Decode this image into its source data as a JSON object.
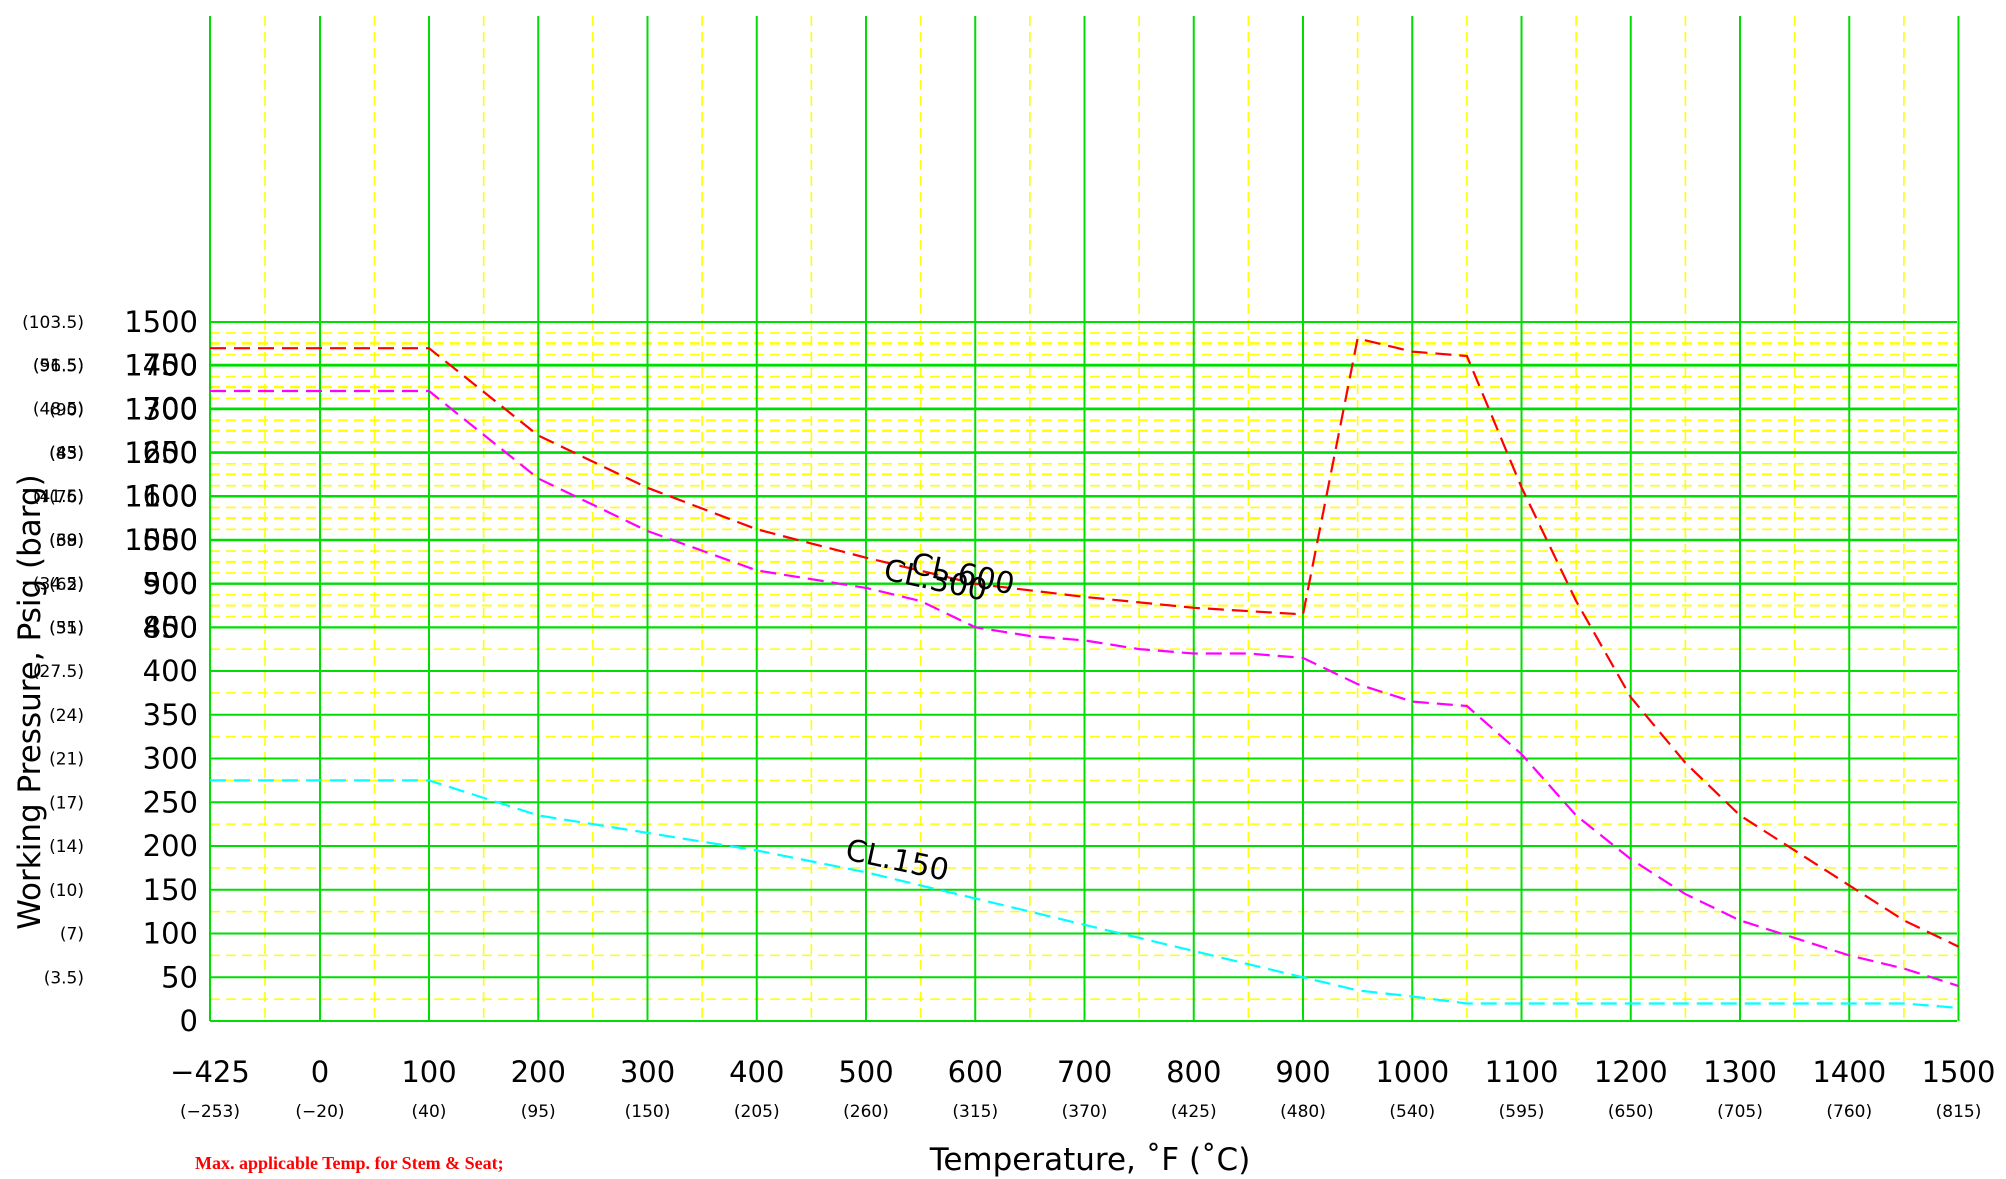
{
  "chart_data": {
    "type": "line",
    "xlabel": "Temperature, ˚F (˚C)",
    "ylabel": "Working Pressure, Psig (barg)",
    "xlim": [
      -425,
      1500
    ],
    "ylim": [
      0,
      1500
    ],
    "grid": true,
    "x_ticks": [
      {
        "label": "−425",
        "sub": "(−253)"
      },
      {
        "label": "0",
        "sub": "(−20)"
      },
      {
        "label": "100",
        "sub": "(40)"
      },
      {
        "label": "200",
        "sub": "(95)"
      },
      {
        "label": "300",
        "sub": "(150)"
      },
      {
        "label": "400",
        "sub": "(205)"
      },
      {
        "label": "500",
        "sub": "(260)"
      },
      {
        "label": "600",
        "sub": "(315)"
      },
      {
        "label": "700",
        "sub": "(370)"
      },
      {
        "label": "800",
        "sub": "(425)"
      },
      {
        "label": "900",
        "sub": "(480)"
      },
      {
        "label": "1000",
        "sub": "(540)"
      },
      {
        "label": "1100",
        "sub": "(595)"
      },
      {
        "label": "1200",
        "sub": "(650)"
      },
      {
        "label": "1300",
        "sub": "(705)"
      },
      {
        "label": "1400",
        "sub": "(760)"
      },
      {
        "label": "1500",
        "sub": "(815)"
      }
    ],
    "y_ticks": [
      {
        "value": 0,
        "label": "0",
        "sub": ""
      },
      {
        "value": 50,
        "label": "50",
        "sub": "(3.5)"
      },
      {
        "value": 100,
        "label": "100",
        "sub": "(7)"
      },
      {
        "value": 150,
        "label": "150",
        "sub": "(10)"
      },
      {
        "value": 200,
        "label": "200",
        "sub": "(14)"
      },
      {
        "value": 250,
        "label": "250",
        "sub": "(17)"
      },
      {
        "value": 300,
        "label": "300",
        "sub": "(21)"
      },
      {
        "value": 350,
        "label": "350",
        "sub": "(24)"
      },
      {
        "value": 400,
        "label": "400",
        "sub": "(27.5)"
      },
      {
        "value": 450,
        "label": "450",
        "sub": "(31)"
      },
      {
        "value": 500,
        "label": "500",
        "sub": "(34.5)"
      },
      {
        "value": 550,
        "label": "550",
        "sub": "(38)"
      },
      {
        "value": 600,
        "label": "600",
        "sub": "(41.5)"
      },
      {
        "value": 650,
        "label": "650",
        "sub": "(45)"
      },
      {
        "value": 700,
        "label": "700",
        "sub": "(48.5)"
      },
      {
        "value": 750,
        "label": "750",
        "sub": "(51.5)"
      },
      {
        "value": 800,
        "label": "800",
        "sub": "(55)"
      },
      {
        "value": 900,
        "label": "900",
        "sub": "(62)"
      },
      {
        "value": 1000,
        "label": "1000",
        "sub": "(69)"
      },
      {
        "value": 1100,
        "label": "1100",
        "sub": "(76)"
      },
      {
        "value": 1200,
        "label": "1200",
        "sub": "(83)"
      },
      {
        "value": 1300,
        "label": "1300",
        "sub": "(90)"
      },
      {
        "value": 1400,
        "label": "1400",
        "sub": "(96.5)"
      },
      {
        "value": 1500,
        "label": "1500",
        "sub": "(103.5)"
      }
    ],
    "series": [
      {
        "name": "CL.600",
        "color": "#ff0000",
        "points": [
          [
            -425,
            1440
          ],
          [
            -100,
            1440
          ],
          [
            100,
            1440
          ],
          [
            200,
            1240
          ],
          [
            300,
            1120
          ],
          [
            400,
            1025
          ],
          [
            500,
            960
          ],
          [
            600,
            900
          ],
          [
            700,
            870
          ],
          [
            800,
            845
          ],
          [
            900,
            830
          ],
          [
            950,
            780
          ],
          [
            1000,
            765
          ],
          [
            1050,
            760
          ],
          [
            1100,
            610
          ],
          [
            1150,
            480
          ],
          [
            1200,
            370
          ],
          [
            1250,
            295
          ],
          [
            1300,
            235
          ],
          [
            1400,
            155
          ],
          [
            1450,
            115
          ],
          [
            1500,
            85
          ]
        ]
      },
      {
        "name": "CL.300",
        "color": "#ff00ff",
        "points": [
          [
            -425,
            720
          ],
          [
            -100,
            720
          ],
          [
            100,
            720
          ],
          [
            200,
            620
          ],
          [
            300,
            560
          ],
          [
            400,
            515
          ],
          [
            500,
            495
          ],
          [
            550,
            480
          ],
          [
            600,
            450
          ],
          [
            650,
            440
          ],
          [
            700,
            435
          ],
          [
            750,
            425
          ],
          [
            800,
            420
          ],
          [
            850,
            420
          ],
          [
            900,
            415
          ],
          [
            950,
            385
          ],
          [
            1000,
            365
          ],
          [
            1050,
            360
          ],
          [
            1100,
            305
          ],
          [
            1150,
            235
          ],
          [
            1200,
            185
          ],
          [
            1250,
            145
          ],
          [
            1300,
            115
          ],
          [
            1350,
            95
          ],
          [
            1400,
            75
          ],
          [
            1450,
            60
          ],
          [
            1500,
            40
          ]
        ]
      },
      {
        "name": "CL.150",
        "color": "#00ffff",
        "points": [
          [
            -425,
            275
          ],
          [
            -100,
            275
          ],
          [
            100,
            275
          ],
          [
            200,
            235
          ],
          [
            300,
            215
          ],
          [
            400,
            195
          ],
          [
            500,
            170
          ],
          [
            600,
            140
          ],
          [
            700,
            110
          ],
          [
            800,
            80
          ],
          [
            900,
            50
          ],
          [
            950,
            35
          ],
          [
            1000,
            28
          ],
          [
            1050,
            20
          ],
          [
            1100,
            20
          ],
          [
            1200,
            20
          ],
          [
            1300,
            20
          ],
          [
            1400,
            20
          ],
          [
            1450,
            20
          ],
          [
            1500,
            15
          ]
        ]
      }
    ],
    "annotations": [
      {
        "text": "CL.600",
        "at": [
          540,
          925
        ]
      },
      {
        "text": "CL.300",
        "at": [
          515,
          505
        ]
      },
      {
        "text": "CL.150",
        "at": [
          480,
          185
        ]
      }
    ],
    "footnote": "Max. applicable Temp. for Stem & Seat;"
  },
  "colors": {
    "major_grid": "#00dd00",
    "minor_grid": "#ffff00",
    "cl600": "#ff0000",
    "cl300": "#ff00ff",
    "cl150": "#00ffff"
  }
}
